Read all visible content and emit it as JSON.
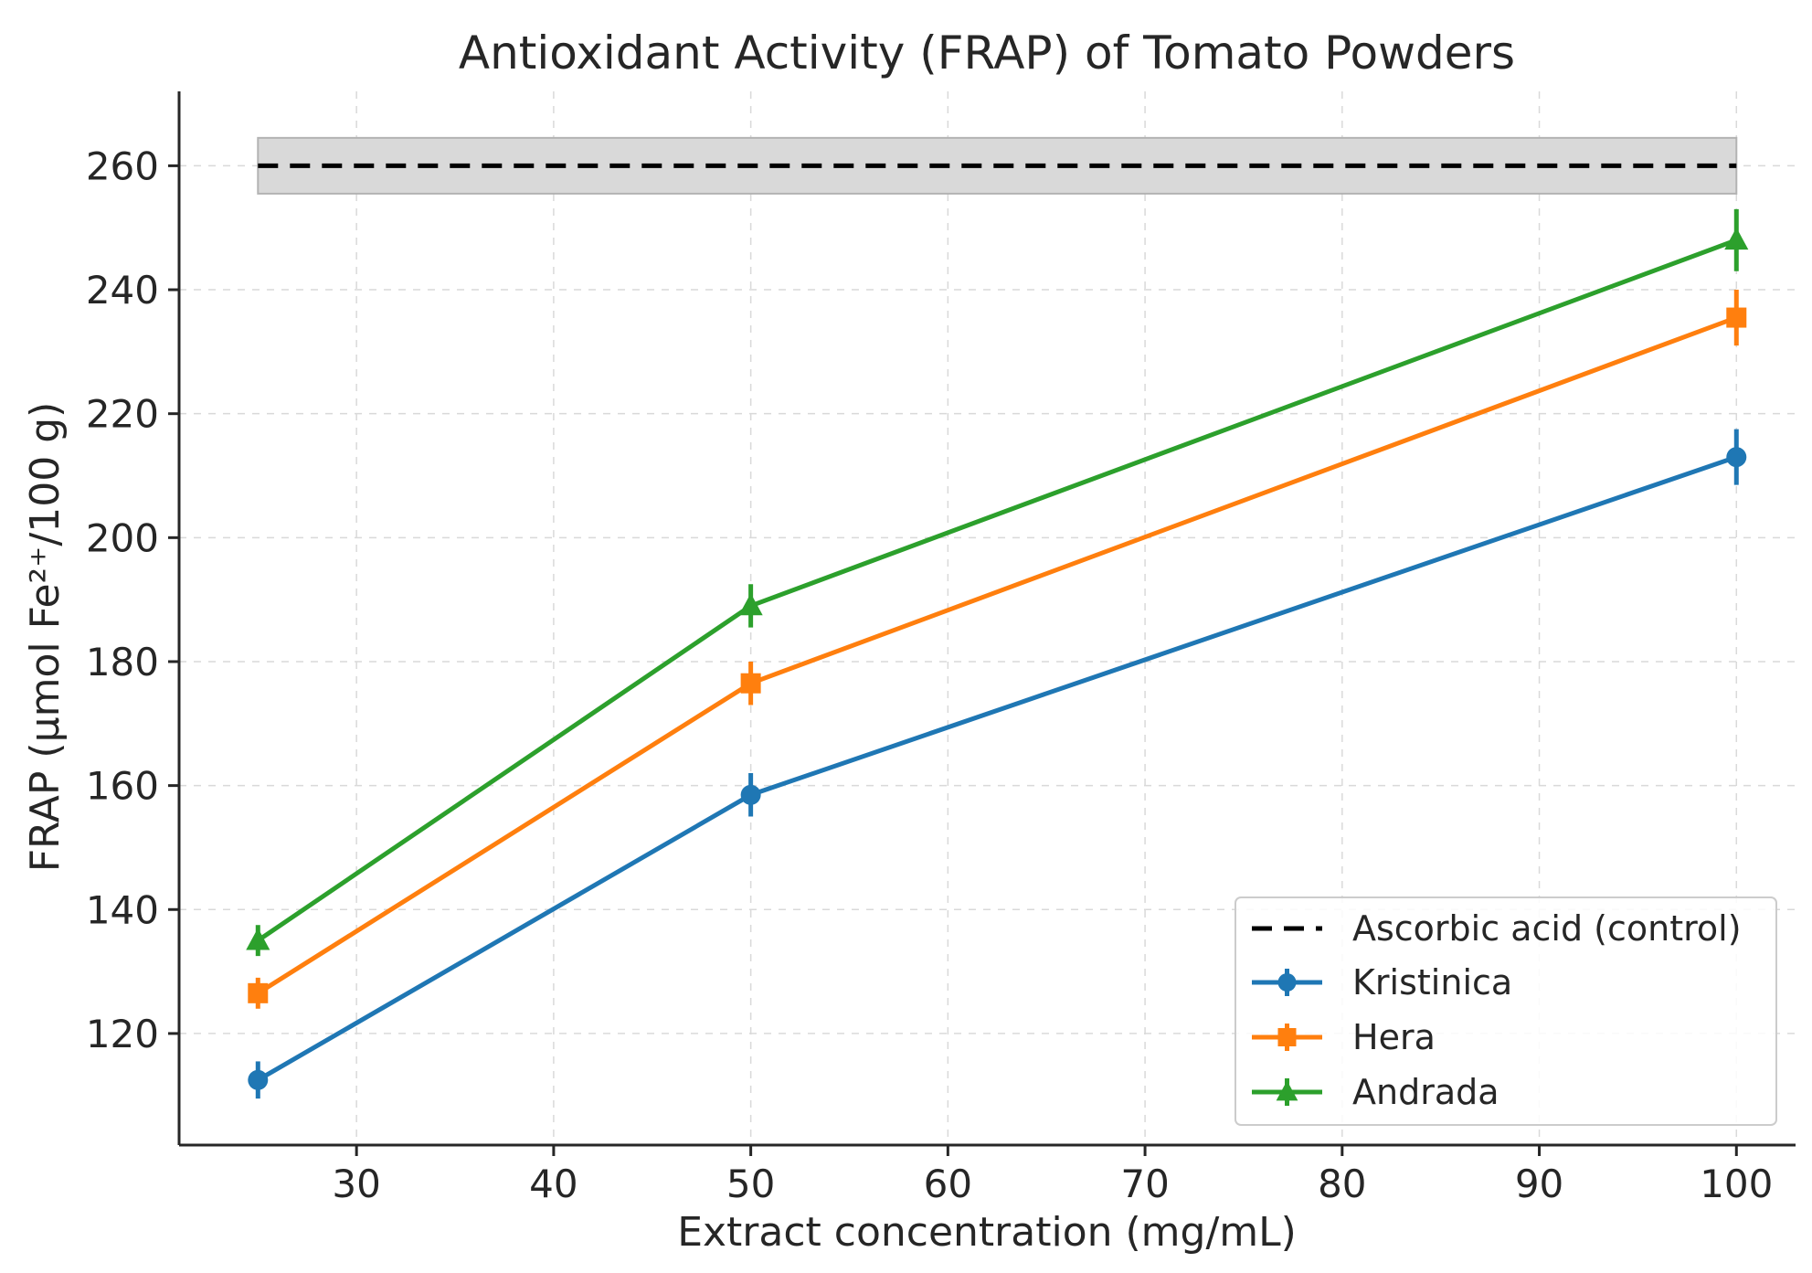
{
  "chart_data": {
    "type": "line",
    "title": "Antioxidant Activity (FRAP) of Tomato Powders",
    "xlabel": "Extract concentration (mg/mL)",
    "ylabel": "FRAP (µmol Fe²⁺/100 g)",
    "xlim": [
      21,
      103
    ],
    "ylim": [
      102,
      272
    ],
    "xticks": [
      30,
      40,
      50,
      60,
      70,
      80,
      90,
      100
    ],
    "yticks": [
      120,
      140,
      160,
      180,
      200,
      220,
      240,
      260
    ],
    "grid": true,
    "legend_position": "lower-right",
    "x": [
      25,
      50,
      100
    ],
    "control": {
      "name": "Ascorbic acid (control)",
      "value": 260,
      "band": [
        255.5,
        264.5
      ],
      "x_range": [
        25,
        100
      ],
      "color": "#000000",
      "band_color": "#d9d9d9"
    },
    "series": [
      {
        "name": "Kristinica",
        "color": "#1f77b4",
        "marker": "circle",
        "values": [
          112.5,
          158.5,
          213.0
        ],
        "errors": [
          3.0,
          3.5,
          4.5
        ]
      },
      {
        "name": "Hera",
        "color": "#ff7f0e",
        "marker": "square",
        "values": [
          126.5,
          176.5,
          235.5
        ],
        "errors": [
          2.5,
          3.5,
          4.5
        ]
      },
      {
        "name": "Andrada",
        "color": "#2ca02c",
        "marker": "triangle",
        "values": [
          135.0,
          189.0,
          248.0
        ],
        "errors": [
          2.5,
          3.5,
          5.0
        ]
      }
    ]
  }
}
